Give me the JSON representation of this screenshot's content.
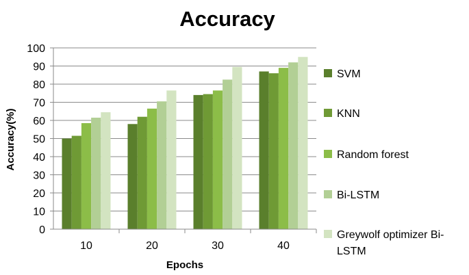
{
  "chart_data": {
    "type": "bar",
    "title": "Accuracy",
    "xlabel": "Epochs",
    "ylabel": "Accuracy(%)",
    "categories": [
      "10",
      "20",
      "30",
      "40"
    ],
    "ylim": [
      0,
      100
    ],
    "yticks": [
      0,
      10,
      20,
      30,
      40,
      50,
      60,
      70,
      80,
      90,
      100
    ],
    "grid": true,
    "legend_position": "right",
    "series": [
      {
        "name": "SVM",
        "values": [
          50,
          58,
          74,
          87
        ],
        "color": "#5a7f2c",
        "legend_lines": [
          "SVM"
        ]
      },
      {
        "name": "KNN",
        "values": [
          51.5,
          62,
          74.5,
          86
        ],
        "color": "#6f9a35",
        "legend_lines": [
          "KNN"
        ]
      },
      {
        "name": "Random forest",
        "values": [
          58.5,
          66.5,
          76.5,
          89
        ],
        "color": "#8cbd48",
        "legend_lines": [
          "Random forest"
        ]
      },
      {
        "name": "Bi-LSTM",
        "values": [
          61.5,
          70.5,
          82.5,
          92
        ],
        "color": "#b2cf95",
        "legend_lines": [
          "Bi-LSTM"
        ]
      },
      {
        "name": "Greywolf optimizer Bi-LSTM",
        "values": [
          64.5,
          76.5,
          89.5,
          95
        ],
        "color": "#d3e4c1",
        "legend_lines": [
          "Greywolf optimizer Bi-",
          "LSTM"
        ]
      }
    ]
  }
}
